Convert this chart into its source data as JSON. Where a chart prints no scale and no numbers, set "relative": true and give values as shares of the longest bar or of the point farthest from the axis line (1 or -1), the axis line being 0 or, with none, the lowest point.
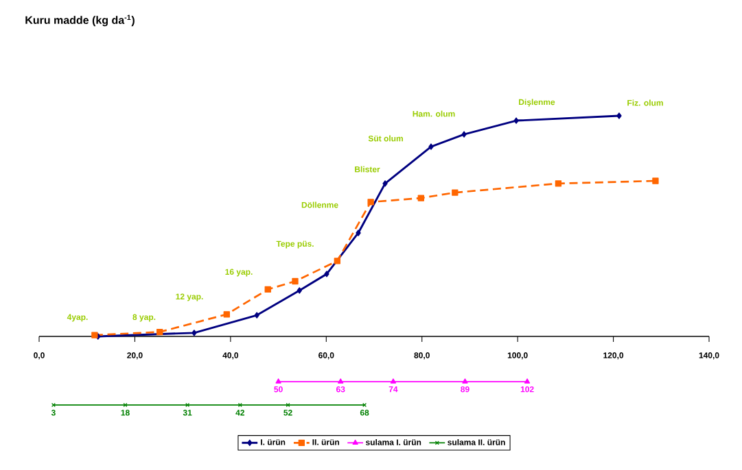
{
  "chart_data": {
    "type": "line",
    "title": "Kuru madde (kg da$^{-1}$)",
    "relative": true,
    "xlim": [
      0,
      140
    ],
    "xticks": [
      {
        "value": 0,
        "label": "0,0"
      },
      {
        "value": 20,
        "label": "20,0"
      },
      {
        "value": 40,
        "label": "40,0"
      },
      {
        "value": 60,
        "label": "60,0"
      },
      {
        "value": 80,
        "label": "80,0"
      },
      {
        "value": 100,
        "label": "100,0"
      },
      {
        "value": 120,
        "label": "120,0"
      },
      {
        "value": 140,
        "label": "140,0"
      }
    ],
    "legend": "bottom",
    "grid": false,
    "series": [
      {
        "name": "I. ürün",
        "color": "#000080",
        "marker": "diamond",
        "line_style": "solid",
        "x": [
          12.3,
          32.4,
          45.5,
          54.4,
          60.1,
          66.7,
          72.3,
          81.9,
          88.8,
          99.7,
          121.2
        ],
        "values": [
          0,
          0.016,
          0.096,
          0.208,
          0.283,
          0.469,
          0.693,
          0.86,
          0.916,
          0.978,
          1
        ]
      },
      {
        "name": "II. ürün",
        "color": "#ff6600",
        "marker": "square",
        "line_style": "dashed",
        "x": [
          11.6,
          25.2,
          39.2,
          47.8,
          53.5,
          62.3,
          69.3,
          79.8,
          86.9,
          108.5,
          128.8
        ],
        "values": [
          0.006,
          0.02,
          0.1,
          0.213,
          0.25,
          0.342,
          0.609,
          0.627,
          0.652,
          0.693,
          0.705
        ]
      },
      {
        "name": "sulama I. ürün",
        "color": "#ff00ff",
        "marker": "triangle",
        "line_style": "solid",
        "x": [
          50,
          63,
          74,
          89,
          102
        ],
        "values": [
          -0.205,
          -0.205,
          -0.205,
          -0.205,
          -0.205
        ]
      },
      {
        "name": "sulama II. ürün",
        "color": "#008000",
        "marker": "cross",
        "line_style": "solid",
        "x": [
          3,
          18,
          31,
          42,
          52,
          68
        ],
        "values": [
          -0.311,
          -0.311,
          -0.311,
          -0.311,
          -0.311,
          -0.311
        ]
      }
    ],
    "annotations": [
      "4yap.",
      "8 yap.",
      "12 yap.",
      "16 yap.",
      "Tepe püs.",
      "Döllenme",
      "Blister",
      "Süt olum",
      "Ham. olum",
      "Dişlenme",
      "Fiz. olum",
      {
        "text": "50",
        "x": 50,
        "y": -0.205
      },
      {
        "text": "63",
        "x": 63,
        "y": -0.205
      },
      {
        "text": "74",
        "x": 74,
        "y": -0.205
      },
      {
        "text": "89",
        "x": 89,
        "y": -0.205
      },
      {
        "text": "102",
        "x": 102,
        "y": -0.205
      },
      {
        "text": "3",
        "x": 3,
        "y": -0.311
      },
      {
        "text": "18",
        "x": 18,
        "y": -0.311
      },
      {
        "text": "31",
        "x": 31,
        "y": -0.311
      },
      {
        "text": "42",
        "x": 42,
        "y": -0.311
      },
      {
        "text": "52",
        "x": 52,
        "y": -0.311
      },
      {
        "text": "68",
        "x": 68,
        "y": -0.311
      }
    ]
  }
}
